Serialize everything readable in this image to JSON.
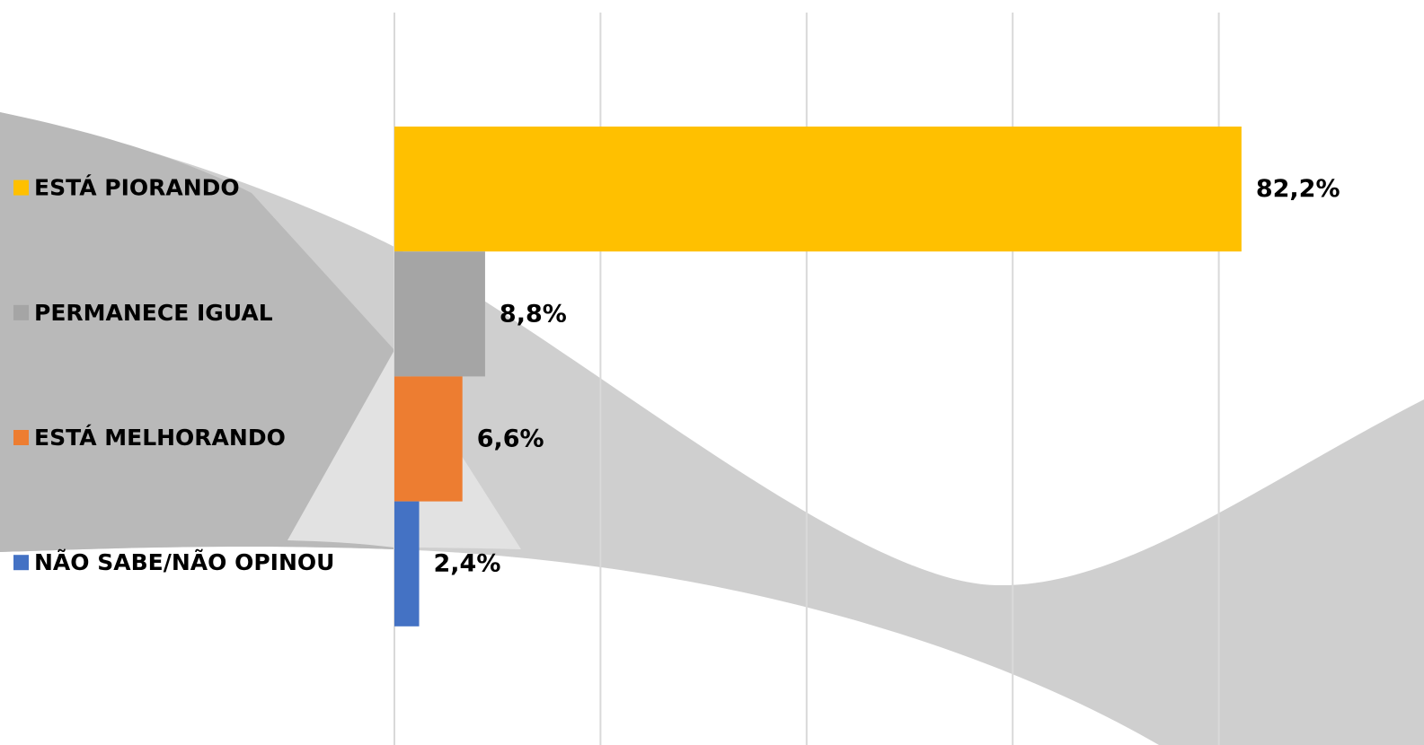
{
  "chart_data": {
    "type": "bar",
    "orientation": "horizontal",
    "categories": [
      "ESTÁ PIORANDO",
      "PERMANECE IGUAL",
      "ESTÁ MELHORANDO",
      "NÃO SABE/NÃO OPINOU"
    ],
    "values": [
      82.2,
      8.8,
      6.6,
      2.4
    ],
    "value_labels": [
      "82,2%",
      "8,8%",
      "6,6%",
      "2,4%"
    ],
    "colors": [
      "#FFC000",
      "#A5A5A5",
      "#ED7D31",
      "#4472C4"
    ],
    "xlim": [
      0,
      100
    ],
    "xticks": [
      0,
      20,
      40,
      60,
      80
    ],
    "grid": true
  }
}
